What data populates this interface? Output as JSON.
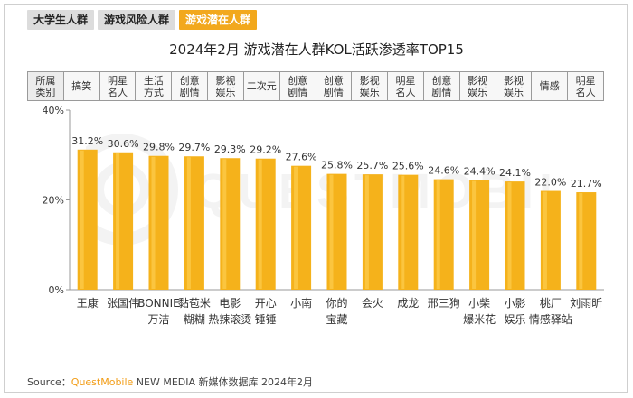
{
  "tabs": [
    {
      "label": "大学生人群",
      "active": false
    },
    {
      "label": "游戏风险人群",
      "active": false
    },
    {
      "label": "游戏潜在人群",
      "active": true
    }
  ],
  "title": "2024年2月 游戏潜在人群KOL活跃渗透率TOP15",
  "category_header": "所属\n类别",
  "colors": {
    "bar": "#f5b21b",
    "bar_highlight": "#ffd65c",
    "tab_active": "#f2a81d",
    "brand": "#f29d17"
  },
  "chart_data": {
    "type": "bar",
    "title": "2024年2月 游戏潜在人群KOL活跃渗透率TOP15",
    "xlabel": "",
    "ylabel": "",
    "ylim": [
      0,
      40
    ],
    "yticks": [
      "0%",
      "20%",
      "40%"
    ],
    "grid": false,
    "categories": [
      "王康",
      "张国伟",
      "BONNIE\n万洁",
      "黏苞米\n糊糊",
      "电影\n热辣滚烫",
      "开心\n锤锤",
      "小南",
      "你的\n宝藏",
      "会火",
      "成龙",
      "邢三狗",
      "小柴\n爆米花",
      "小影\n娱乐",
      "桃厂\n情感驿站",
      "刘雨昕"
    ],
    "kol_types": [
      "搞笑",
      "明星\n名人",
      "生活\n方式",
      "创意\n剧情",
      "影视\n娱乐",
      "二次元",
      "创意\n剧情",
      "创意\n剧情",
      "影视\n娱乐",
      "明星\n名人",
      "创意\n剧情",
      "影视\n娱乐",
      "影视\n娱乐",
      "情感",
      "明星\n名人"
    ],
    "values": [
      31.2,
      30.6,
      29.8,
      29.7,
      29.3,
      29.2,
      27.6,
      25.8,
      25.7,
      25.6,
      24.6,
      24.4,
      24.1,
      22.0,
      21.7
    ],
    "value_labels": [
      "31.2%",
      "30.6%",
      "29.8%",
      "29.7%",
      "29.3%",
      "29.2%",
      "27.6%",
      "25.8%",
      "25.7%",
      "25.6%",
      "24.6%",
      "24.4%",
      "24.1%",
      "22.0%",
      "21.7%"
    ]
  },
  "source": {
    "prefix": "Source：",
    "brand": "QuestMobile",
    "text": " NEW MEDIA 新媒体数据库 2024年2月"
  }
}
